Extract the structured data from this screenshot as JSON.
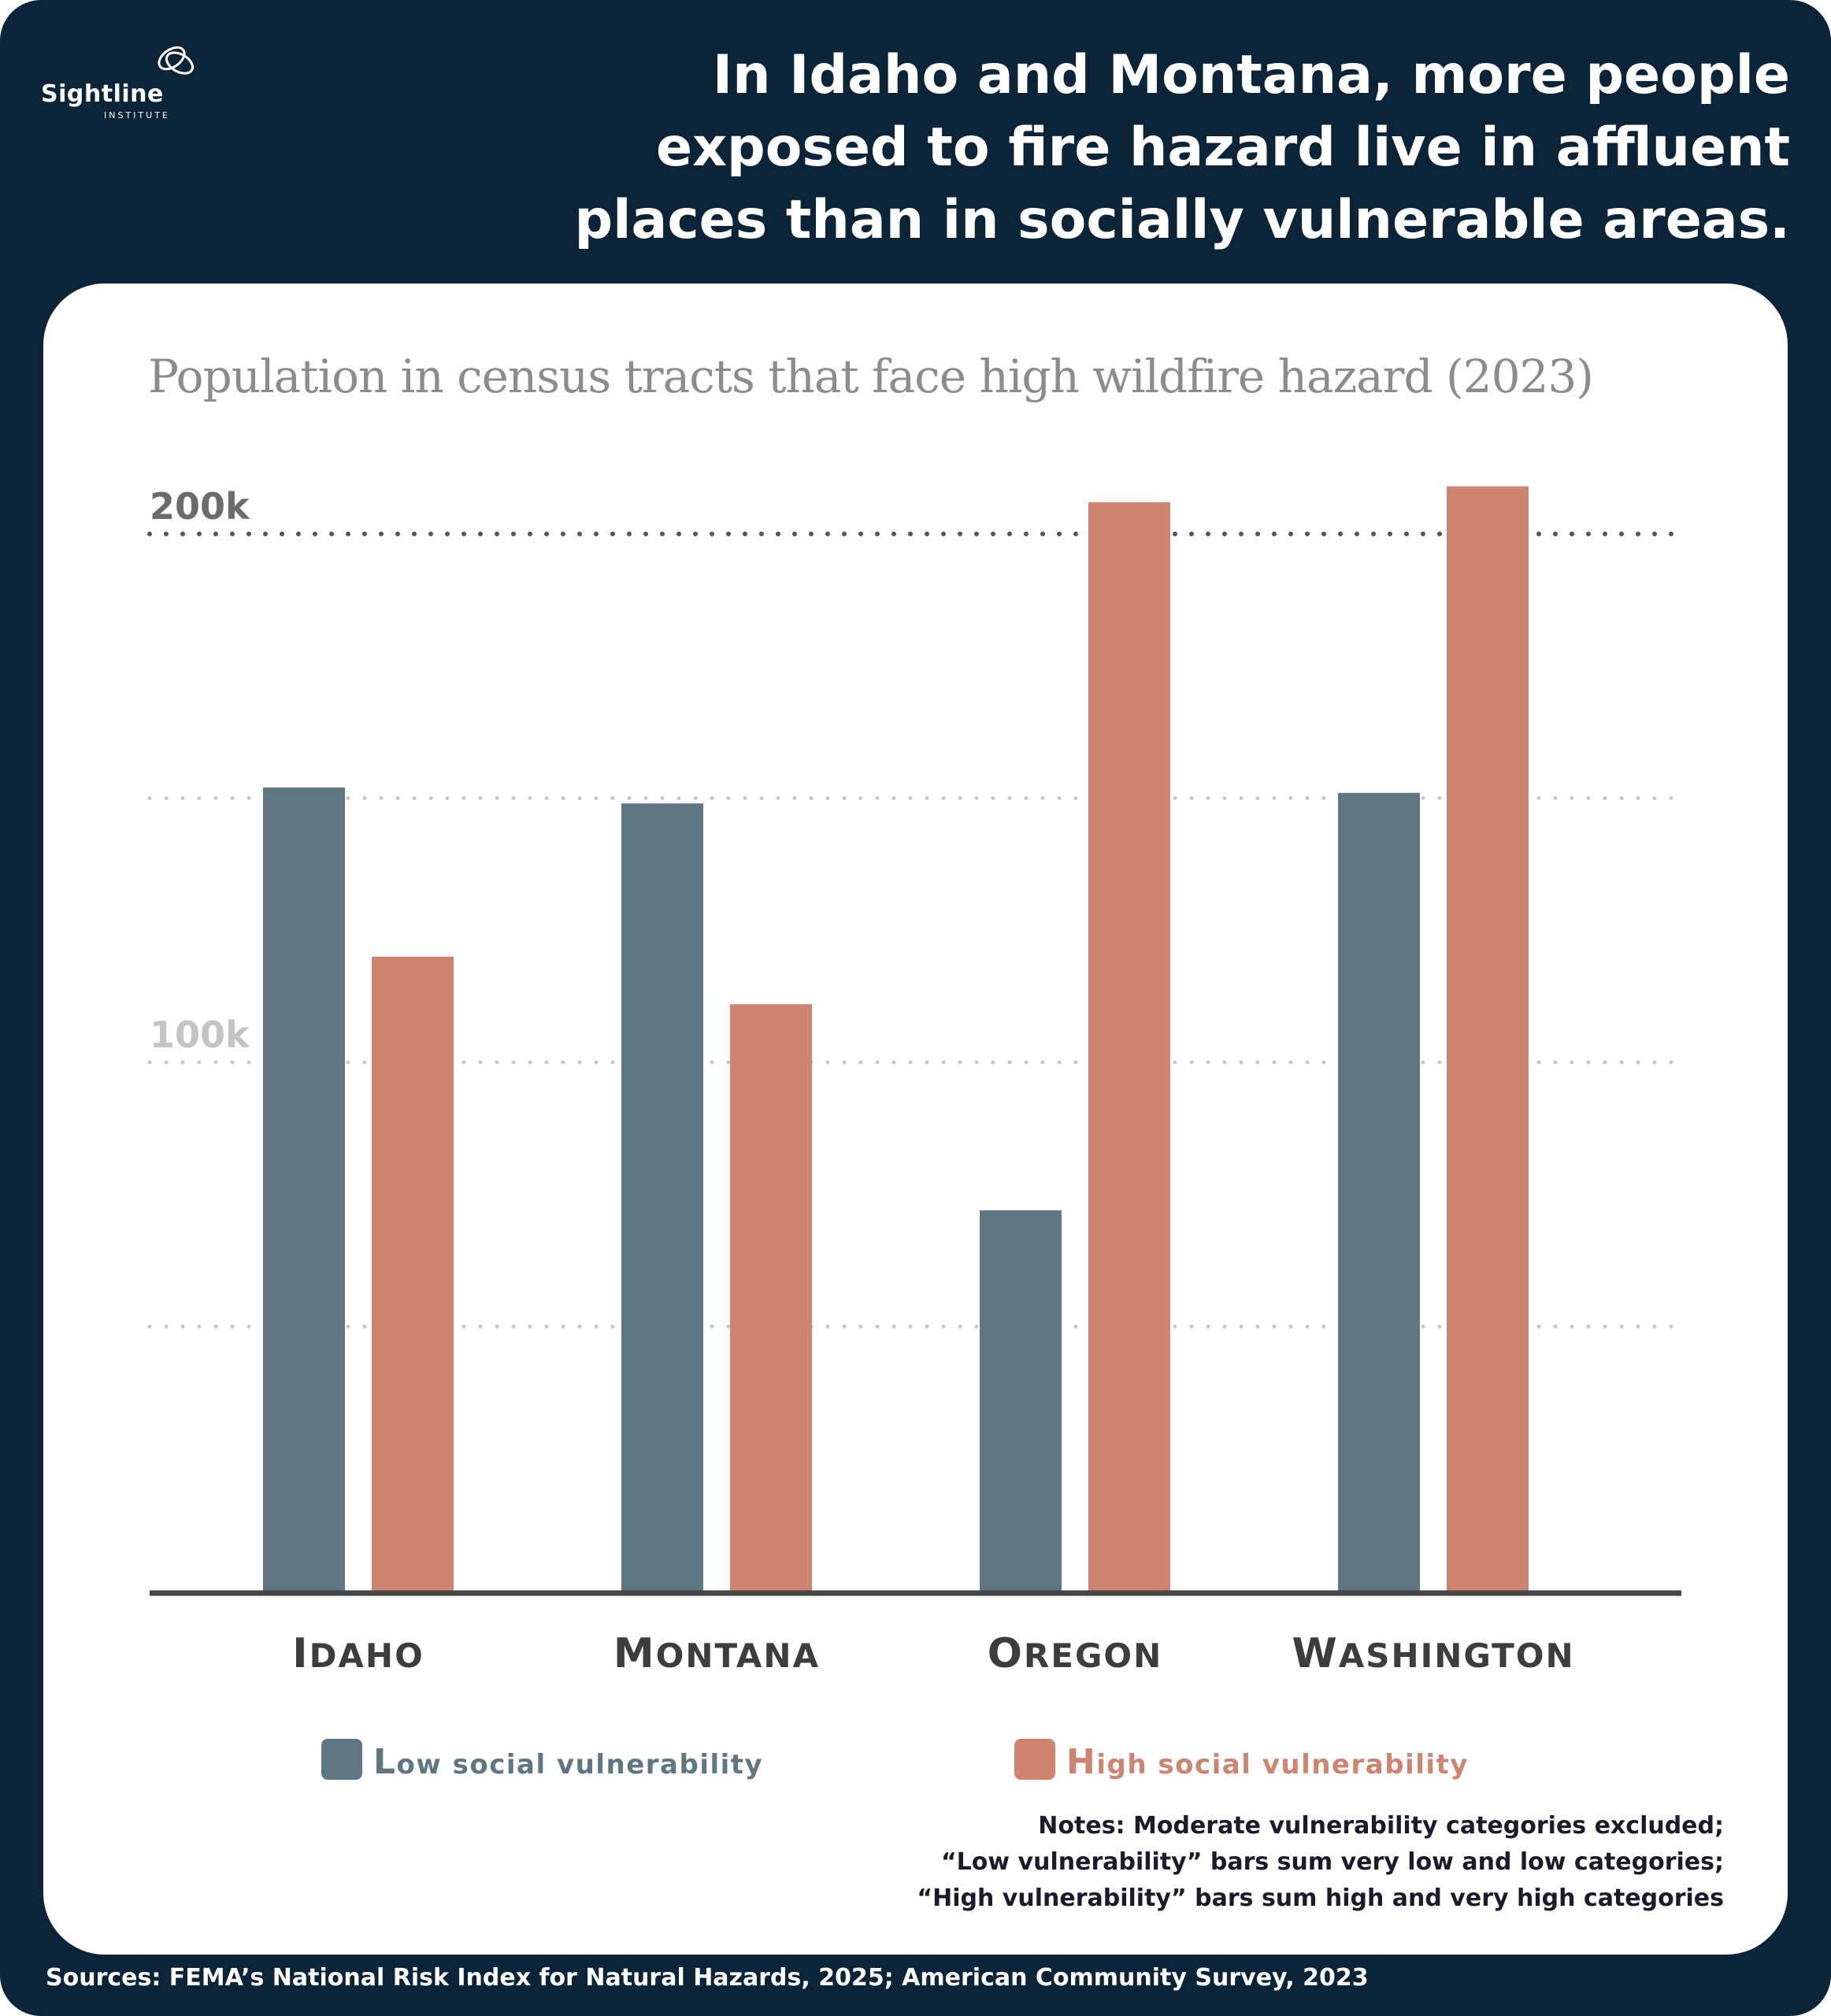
{
  "logo": {
    "name": "Sightline",
    "subtitle": "INSTITUTE"
  },
  "headline": {
    "lines": [
      "In Idaho and Montana, more people",
      "exposed to fire hazard live in affluent",
      "places than in socially vulnerable areas."
    ]
  },
  "colors": {
    "background": "#0b2438",
    "low": "#5f7783",
    "high": "#ce8471",
    "axis": "#444444",
    "grid": "#c8c8c8",
    "grid_major": "#555555"
  },
  "chart_data": {
    "type": "bar",
    "title": "Population in census tracts that face high wildfire hazard (2023)",
    "categories": [
      "Idaho",
      "Montana",
      "Oregon",
      "Washington"
    ],
    "series": [
      {
        "name": "Low social vulnerability",
        "values": [
          152000,
          149000,
          72000,
          151000
        ]
      },
      {
        "name": "High social vulnerability",
        "values": [
          120000,
          111000,
          206000,
          209000
        ]
      }
    ],
    "yticks": [
      {
        "value": 200000,
        "label": "200k"
      },
      {
        "value": 100000,
        "label": "100k"
      }
    ],
    "gridlines": [
      50000,
      100000,
      150000,
      200000
    ],
    "ylim": [
      0,
      210000
    ],
    "grid": true,
    "legend": "bottom"
  },
  "notes": {
    "lines": [
      "Notes: Moderate vulnerability categories excluded;",
      "“Low vulnerability” bars sum very low and low categories;",
      "“High vulnerability” bars sum high and very high categories"
    ]
  },
  "sources": "Sources: FEMA’s National Risk Index for Natural Hazards, 2025; American Community Survey, 2023"
}
